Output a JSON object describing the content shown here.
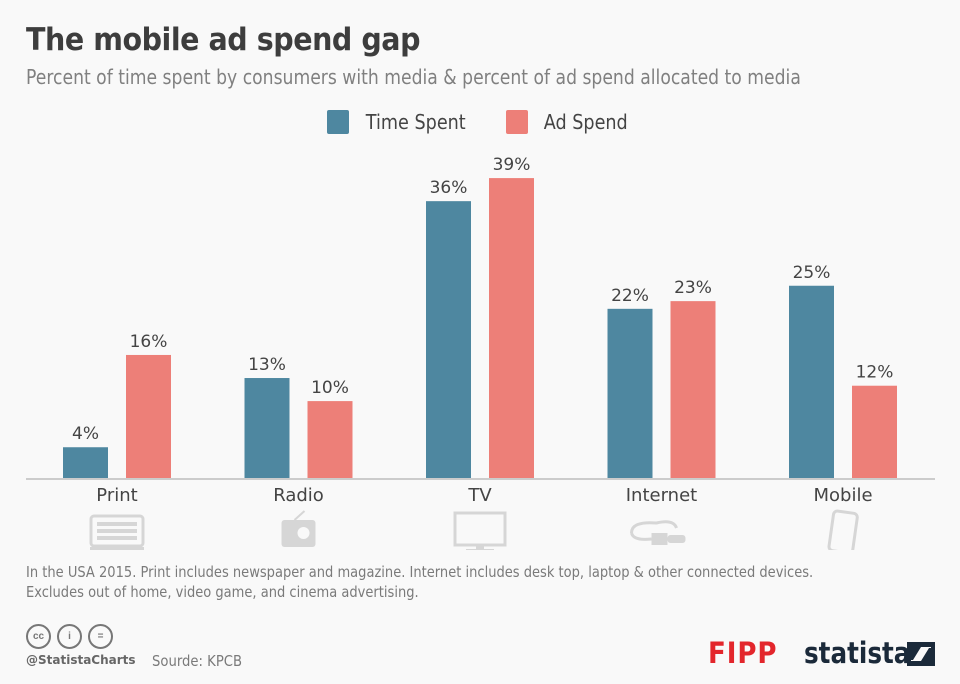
{
  "chart_data": {
    "type": "bar",
    "title": "The mobile ad spend gap",
    "subtitle": "Percent of time spent by consumers with media & percent of ad spend allocated to media",
    "categories": [
      "Print",
      "Radio",
      "TV",
      "Internet",
      "Mobile"
    ],
    "category_icons": [
      "newspaper-icon",
      "radio-icon",
      "tv-icon",
      "ethernet-cable-icon",
      "smartphone-icon"
    ],
    "series": [
      {
        "name": "Time Spent",
        "color": "#4e87a0",
        "values": [
          4,
          13,
          36,
          22,
          25
        ]
      },
      {
        "name": "Ad Spend",
        "color": "#ed7f78",
        "values": [
          16,
          10,
          39,
          23,
          12
        ]
      }
    ],
    "value_suffix": "%",
    "xlabel": "",
    "ylabel": "",
    "ylim": [
      0,
      42
    ],
    "grid": false,
    "legend_position": "top-center"
  },
  "footer": {
    "note_line1": "In the USA 2015. Print includes newspaper and magazine. Internet includes desk top, laptop & other connected devices.",
    "note_line2": "Excludes out of home, video game, and cinema advertising.",
    "handle": "@StatistaCharts",
    "source": "Sourde: KPCB",
    "cc_icons": [
      "cc",
      "i",
      "="
    ],
    "partner_logo": "FIPP",
    "brand_logo": "statista"
  }
}
